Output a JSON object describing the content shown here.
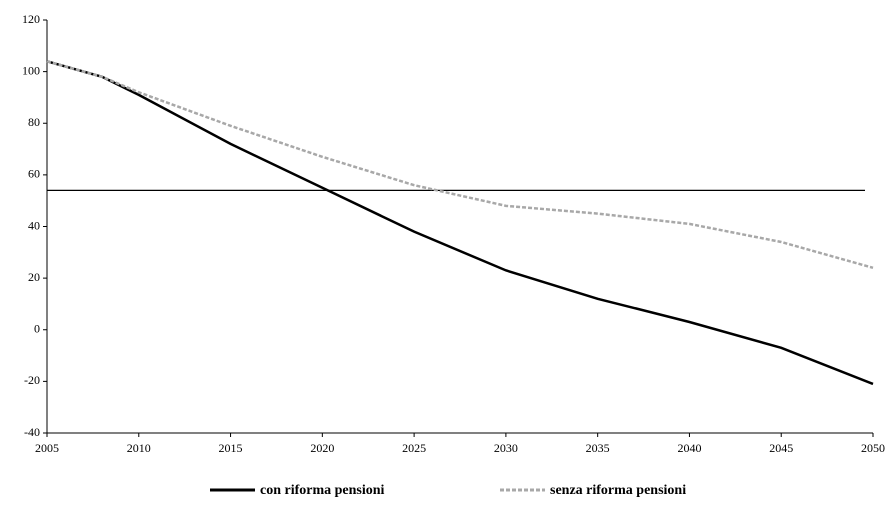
{
  "chart_data": {
    "type": "line",
    "x": [
      2005,
      2008,
      2010,
      2015,
      2020,
      2025,
      2030,
      2035,
      2040,
      2045,
      2050
    ],
    "series": [
      {
        "name": "con riforma pensioni",
        "color": "#000000",
        "values": [
          104,
          98,
          91,
          72,
          55,
          38,
          23,
          12,
          3,
          -7,
          -21
        ]
      },
      {
        "name": "senza riforma pensioni",
        "color": "#a8a8a8",
        "values": [
          104,
          98,
          92,
          79,
          67,
          56,
          48,
          45,
          41,
          34,
          24
        ]
      }
    ],
    "hline": 54,
    "hline_color": "#000000",
    "xlim": [
      2005,
      2050
    ],
    "xticks": [
      2005,
      2010,
      2015,
      2020,
      2025,
      2030,
      2035,
      2040,
      2045,
      2050
    ],
    "ylim": [
      -40,
      120
    ],
    "yticks": [
      -40,
      -20,
      0,
      20,
      40,
      60,
      80,
      100,
      120
    ],
    "grid": false
  }
}
